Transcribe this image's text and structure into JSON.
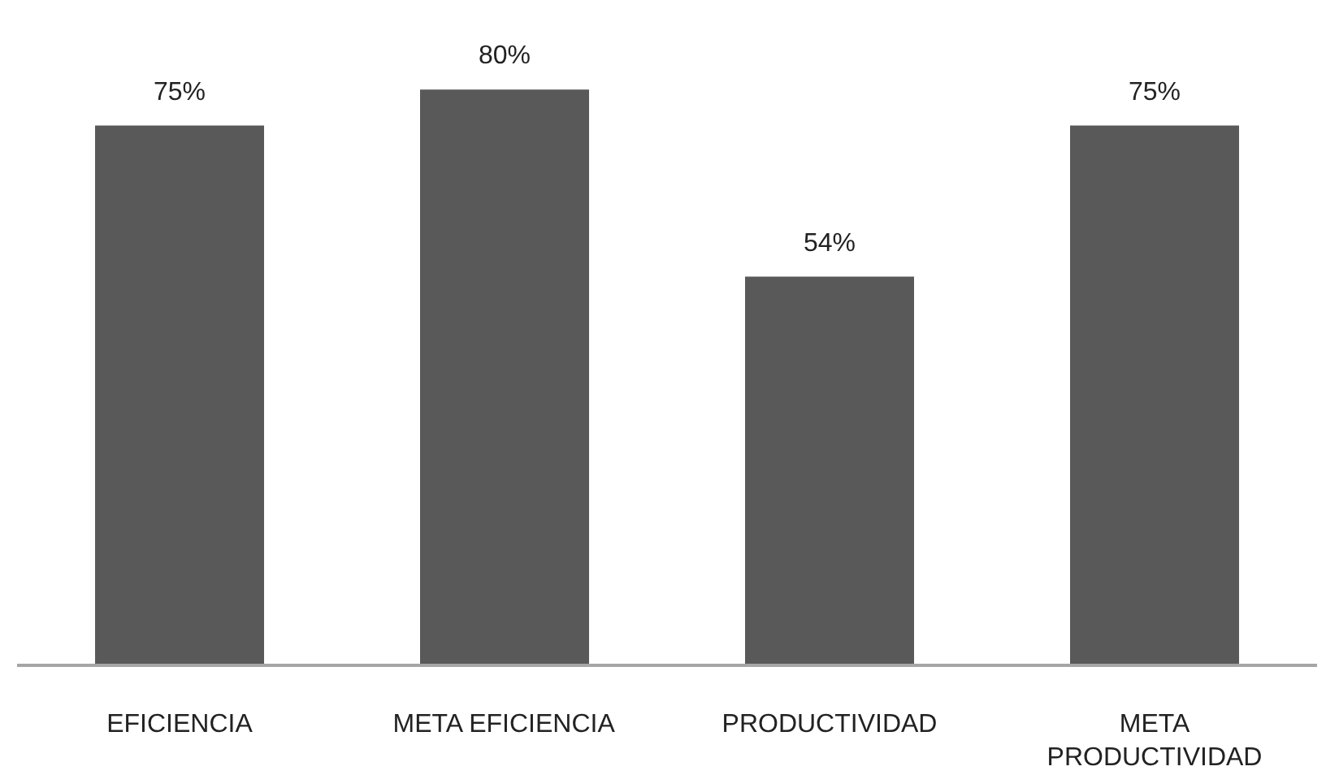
{
  "chart_data": {
    "type": "bar",
    "categories": [
      "EFICIENCIA",
      "META EFICIENCIA",
      "PRODUCTIVIDAD",
      "META PRODUCTIVIDAD"
    ],
    "values": [
      75,
      80,
      54,
      75
    ],
    "value_labels": [
      "75%",
      "80%",
      "54%",
      "75%"
    ],
    "color": "#595959",
    "grid": false
  }
}
